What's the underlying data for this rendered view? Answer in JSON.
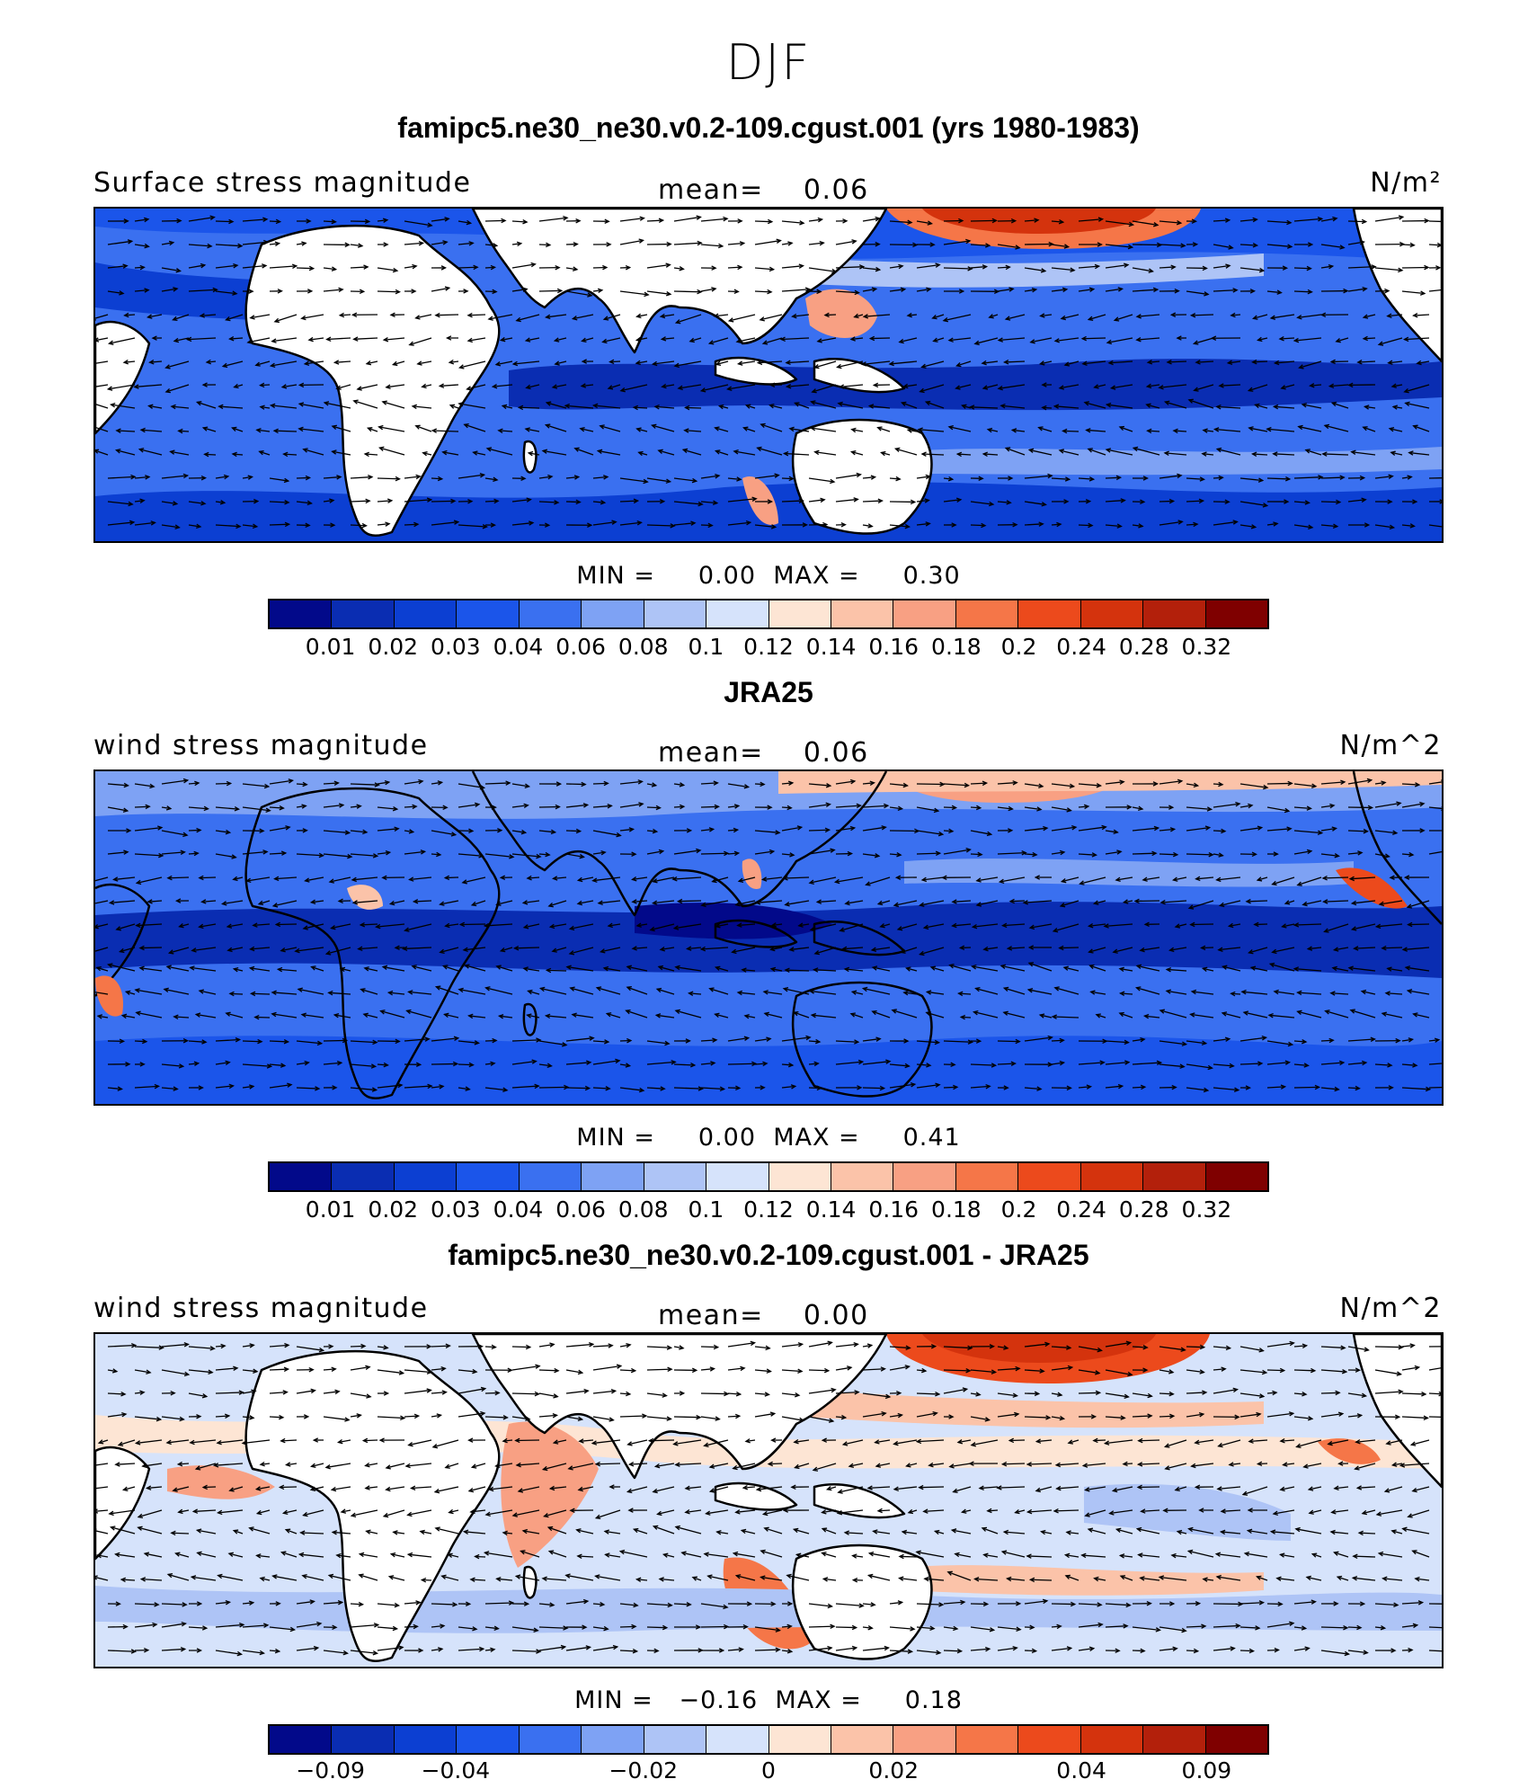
{
  "figure_title": "DJF",
  "panels": [
    {
      "title": "famipc5.ne30_ne30.v0.2-109.cgust.001 (yrs 1980-1983)",
      "variable": "Surface stress magnitude",
      "mean_label": "mean=",
      "mean_value": "0.06",
      "units": "N/m²",
      "min_label": "MIN =",
      "min_value": "0.00",
      "max_label": "MAX =",
      "max_value": "0.30",
      "colorbar_ticks": [
        "0.01",
        "0.02",
        "0.03",
        "0.04",
        "0.06",
        "0.08",
        "0.1",
        "0.12",
        "0.14",
        "0.16",
        "0.18",
        "0.2",
        "0.24",
        "0.28",
        "0.32"
      ]
    },
    {
      "title": "JRA25",
      "variable": "wind stress magnitude",
      "mean_label": "mean=",
      "mean_value": "0.06",
      "units": "N/m^2",
      "min_label": "MIN =",
      "min_value": "0.00",
      "max_label": "MAX =",
      "max_value": "0.41",
      "colorbar_ticks": [
        "0.01",
        "0.02",
        "0.03",
        "0.04",
        "0.06",
        "0.08",
        "0.1",
        "0.12",
        "0.14",
        "0.16",
        "0.18",
        "0.2",
        "0.24",
        "0.28",
        "0.32"
      ]
    },
    {
      "title": "famipc5.ne30_ne30.v0.2-109.cgust.001 - JRA25",
      "variable": "wind stress magnitude",
      "mean_label": "mean=",
      "mean_value": "0.00",
      "units": "N/m^2",
      "min_label": "MIN =",
      "min_value": "−0.16",
      "max_label": "MAX =",
      "max_value": "0.18",
      "colorbar_ticks": [
        "−0.09",
        "−0.04",
        "−0.02",
        "0",
        "0.02",
        "0.04",
        "0.09"
      ]
    }
  ],
  "colors": {
    "seq_palette": [
      "#02098a",
      "#0a2db2",
      "#0c3fd2",
      "#1b55ea",
      "#3a70f0",
      "#7ea2f4",
      "#aec4f6",
      "#d6e3fb",
      "#fde5d4",
      "#fbc3a9",
      "#f8a083",
      "#f57648",
      "#ec4a1c",
      "#d4330d",
      "#b3200b",
      "#7f0000"
    ],
    "diff_palette": [
      "#02098a",
      "#0a2db2",
      "#0c3fd2",
      "#1b55ea",
      "#3a70f0",
      "#7ea2f4",
      "#aec4f6",
      "#d6e3fb",
      "#fde5d4",
      "#fbc3a9",
      "#f8a083",
      "#f57648",
      "#ec4a1c",
      "#d4330d",
      "#b3200b",
      "#7f0000"
    ],
    "land": "#ffffff",
    "coast": "#000000"
  }
}
